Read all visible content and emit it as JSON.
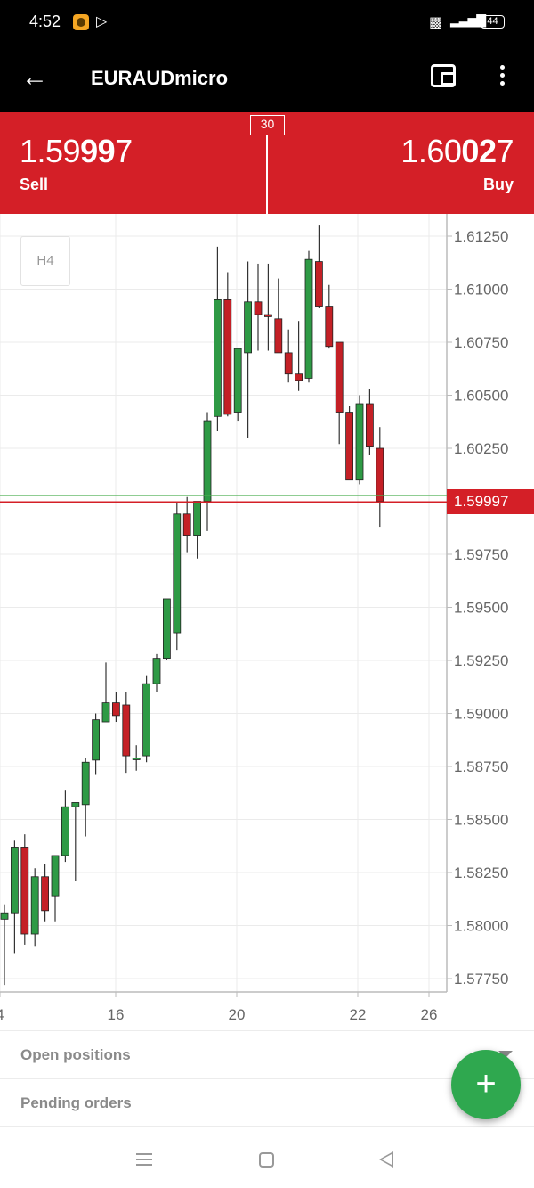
{
  "status_bar": {
    "time": "4:52",
    "battery": "44",
    "play_icon": "play-store-icon",
    "signal_icon": "signal-icon"
  },
  "app_bar": {
    "title": "EURAUDmicro",
    "back_icon": "arrow-left-icon",
    "wallet_icon": "wallet-icon",
    "more_icon": "more-vertical-icon"
  },
  "quote": {
    "sell": {
      "price_pre": "1.59",
      "price_big": "99",
      "price_post": "7",
      "label": "Sell"
    },
    "buy": {
      "price_pre": "1.60",
      "price_big": "02",
      "price_post": "7",
      "label": "Buy"
    },
    "spread": "30"
  },
  "chart": {
    "timeframe": "H4",
    "current_price": "1.59997",
    "colors": {
      "bull": "#2e9a45",
      "bear": "#c42026",
      "ask_line": "#4caf50",
      "bid_line": "#d41f27"
    }
  },
  "chart_data": {
    "type": "candlestick",
    "instrument": "EURAUDmicro",
    "timeframe": "H4",
    "x_ticks": [
      "4",
      "16",
      "20",
      "22",
      "26"
    ],
    "y_ticks": [
      "1.61250",
      "1.61000",
      "1.60750",
      "1.60500",
      "1.60250",
      "1.59997",
      "1.59750",
      "1.59500",
      "1.59250",
      "1.59000",
      "1.58750",
      "1.58500",
      "1.58250",
      "1.58000",
      "1.57750"
    ],
    "ylim": [
      1.577,
      1.6135
    ],
    "bid": 1.59997,
    "ask": 1.60027,
    "candles": [
      {
        "o": 1.5803,
        "h": 1.581,
        "l": 1.5772,
        "c": 1.5806
      },
      {
        "o": 1.5806,
        "h": 1.584,
        "l": 1.5787,
        "c": 1.5837
      },
      {
        "o": 1.5837,
        "h": 1.5843,
        "l": 1.5791,
        "c": 1.5796
      },
      {
        "o": 1.5796,
        "h": 1.5827,
        "l": 1.579,
        "c": 1.5823
      },
      {
        "o": 1.5823,
        "h": 1.5829,
        "l": 1.5802,
        "c": 1.5807
      },
      {
        "o": 1.5814,
        "h": 1.5831,
        "l": 1.5802,
        "c": 1.5833
      },
      {
        "o": 1.5833,
        "h": 1.5864,
        "l": 1.583,
        "c": 1.5856
      },
      {
        "o": 1.5856,
        "h": 1.5858,
        "l": 1.5821,
        "c": 1.5858
      },
      {
        "o": 1.5857,
        "h": 1.5879,
        "l": 1.5842,
        "c": 1.5877
      },
      {
        "o": 1.5878,
        "h": 1.59,
        "l": 1.5871,
        "c": 1.5897
      },
      {
        "o": 1.5896,
        "h": 1.5924,
        "l": 1.5896,
        "c": 1.5905
      },
      {
        "o": 1.5905,
        "h": 1.591,
        "l": 1.5896,
        "c": 1.5899
      },
      {
        "o": 1.5904,
        "h": 1.591,
        "l": 1.5872,
        "c": 1.588
      },
      {
        "o": 1.5879,
        "h": 1.5885,
        "l": 1.5873,
        "c": 1.5879
      },
      {
        "o": 1.588,
        "h": 1.5918,
        "l": 1.5877,
        "c": 1.5914
      },
      {
        "o": 1.5914,
        "h": 1.5928,
        "l": 1.591,
        "c": 1.5926
      },
      {
        "o": 1.5926,
        "h": 1.5953,
        "l": 1.5925,
        "c": 1.5954
      },
      {
        "o": 1.5938,
        "h": 1.6,
        "l": 1.593,
        "c": 1.5994
      },
      {
        "o": 1.5994,
        "h": 1.6002,
        "l": 1.5976,
        "c": 1.5984
      },
      {
        "o": 1.5984,
        "h": 1.6,
        "l": 1.5973,
        "c": 1.6
      },
      {
        "o": 1.6,
        "h": 1.6042,
        "l": 1.5986,
        "c": 1.6038
      },
      {
        "o": 1.604,
        "h": 1.612,
        "l": 1.6033,
        "c": 1.6095
      },
      {
        "o": 1.6095,
        "h": 1.6108,
        "l": 1.604,
        "c": 1.6041
      },
      {
        "o": 1.6042,
        "h": 1.607,
        "l": 1.6038,
        "c": 1.6072
      },
      {
        "o": 1.607,
        "h": 1.6113,
        "l": 1.603,
        "c": 1.6094
      },
      {
        "o": 1.6094,
        "h": 1.6112,
        "l": 1.6071,
        "c": 1.6088
      },
      {
        "o": 1.6088,
        "h": 1.6112,
        "l": 1.6071,
        "c": 1.6087
      },
      {
        "o": 1.6086,
        "h": 1.6105,
        "l": 1.607,
        "c": 1.607
      },
      {
        "o": 1.607,
        "h": 1.6081,
        "l": 1.6056,
        "c": 1.606
      },
      {
        "o": 1.606,
        "h": 1.6085,
        "l": 1.6052,
        "c": 1.6057
      },
      {
        "o": 1.6058,
        "h": 1.6118,
        "l": 1.6056,
        "c": 1.6114
      },
      {
        "o": 1.6113,
        "h": 1.613,
        "l": 1.6091,
        "c": 1.6092
      },
      {
        "o": 1.6092,
        "h": 1.6102,
        "l": 1.6072,
        "c": 1.6073
      },
      {
        "o": 1.6075,
        "h": 1.6075,
        "l": 1.6027,
        "c": 1.6042
      },
      {
        "o": 1.6042,
        "h": 1.6045,
        "l": 1.601,
        "c": 1.601
      },
      {
        "o": 1.601,
        "h": 1.605,
        "l": 1.6008,
        "c": 1.6046
      },
      {
        "o": 1.6046,
        "h": 1.6053,
        "l": 1.6022,
        "c": 1.6026
      },
      {
        "o": 1.6025,
        "h": 1.6035,
        "l": 1.5988,
        "c": 1.6
      }
    ]
  },
  "panel": {
    "open_positions": "Open positions",
    "pending_orders": "Pending orders",
    "fab_label": "+"
  }
}
